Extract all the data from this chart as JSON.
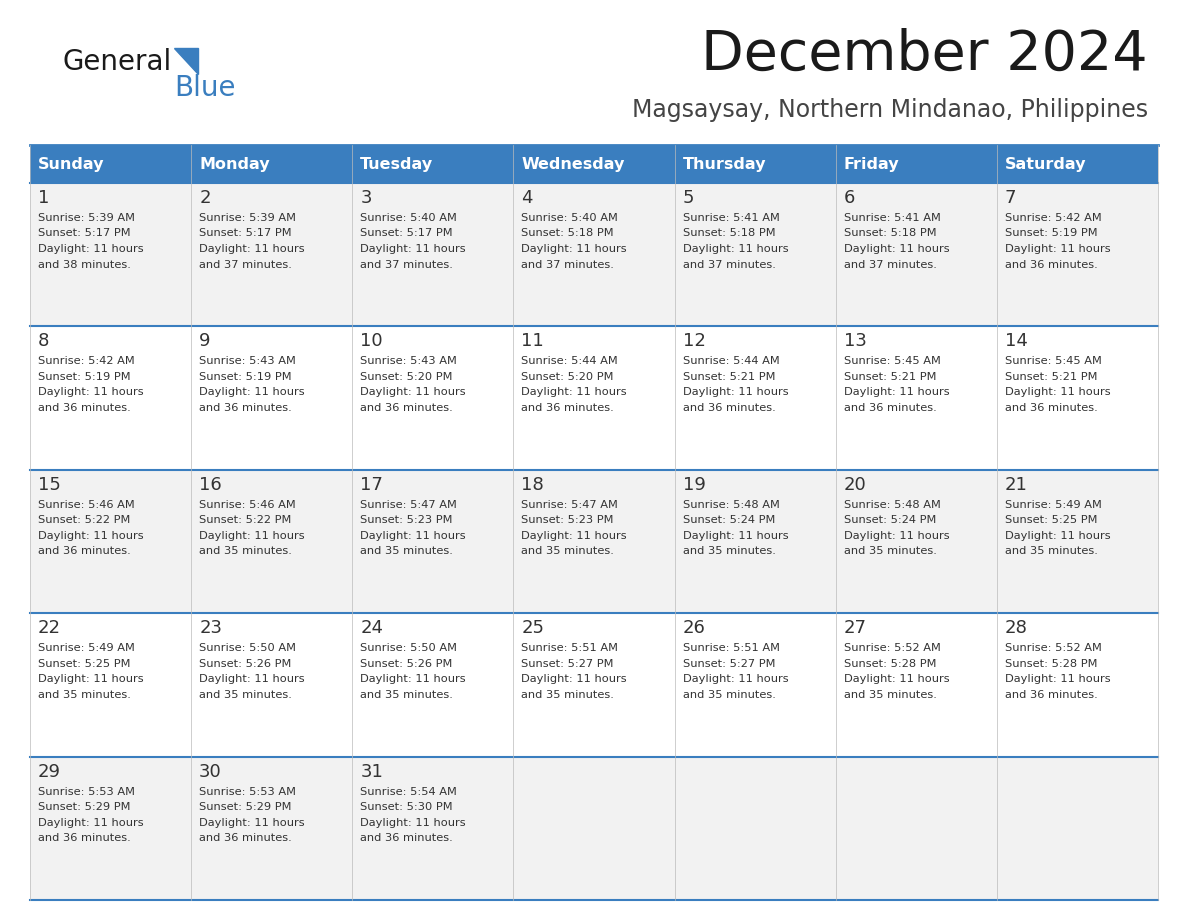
{
  "title": "December 2024",
  "subtitle": "Magsaysay, Northern Mindanao, Philippines",
  "header_bg_color": "#3a7ebf",
  "header_text_color": "#ffffff",
  "day_names": [
    "Sunday",
    "Monday",
    "Tuesday",
    "Wednesday",
    "Thursday",
    "Friday",
    "Saturday"
  ],
  "cell_bg_even": "#f2f2f2",
  "cell_bg_odd": "#ffffff",
  "border_color": "#3a7ebf",
  "text_color": "#333333",
  "days": [
    {
      "day": 1,
      "col": 0,
      "row": 0,
      "sunrise": "5:39 AM",
      "sunset": "5:17 PM",
      "daylight": "11 hours and 38 minutes"
    },
    {
      "day": 2,
      "col": 1,
      "row": 0,
      "sunrise": "5:39 AM",
      "sunset": "5:17 PM",
      "daylight": "11 hours and 37 minutes"
    },
    {
      "day": 3,
      "col": 2,
      "row": 0,
      "sunrise": "5:40 AM",
      "sunset": "5:17 PM",
      "daylight": "11 hours and 37 minutes"
    },
    {
      "day": 4,
      "col": 3,
      "row": 0,
      "sunrise": "5:40 AM",
      "sunset": "5:18 PM",
      "daylight": "11 hours and 37 minutes"
    },
    {
      "day": 5,
      "col": 4,
      "row": 0,
      "sunrise": "5:41 AM",
      "sunset": "5:18 PM",
      "daylight": "11 hours and 37 minutes"
    },
    {
      "day": 6,
      "col": 5,
      "row": 0,
      "sunrise": "5:41 AM",
      "sunset": "5:18 PM",
      "daylight": "11 hours and 37 minutes"
    },
    {
      "day": 7,
      "col": 6,
      "row": 0,
      "sunrise": "5:42 AM",
      "sunset": "5:19 PM",
      "daylight": "11 hours and 36 minutes"
    },
    {
      "day": 8,
      "col": 0,
      "row": 1,
      "sunrise": "5:42 AM",
      "sunset": "5:19 PM",
      "daylight": "11 hours and 36 minutes"
    },
    {
      "day": 9,
      "col": 1,
      "row": 1,
      "sunrise": "5:43 AM",
      "sunset": "5:19 PM",
      "daylight": "11 hours and 36 minutes"
    },
    {
      "day": 10,
      "col": 2,
      "row": 1,
      "sunrise": "5:43 AM",
      "sunset": "5:20 PM",
      "daylight": "11 hours and 36 minutes"
    },
    {
      "day": 11,
      "col": 3,
      "row": 1,
      "sunrise": "5:44 AM",
      "sunset": "5:20 PM",
      "daylight": "11 hours and 36 minutes"
    },
    {
      "day": 12,
      "col": 4,
      "row": 1,
      "sunrise": "5:44 AM",
      "sunset": "5:21 PM",
      "daylight": "11 hours and 36 minutes"
    },
    {
      "day": 13,
      "col": 5,
      "row": 1,
      "sunrise": "5:45 AM",
      "sunset": "5:21 PM",
      "daylight": "11 hours and 36 minutes"
    },
    {
      "day": 14,
      "col": 6,
      "row": 1,
      "sunrise": "5:45 AM",
      "sunset": "5:21 PM",
      "daylight": "11 hours and 36 minutes"
    },
    {
      "day": 15,
      "col": 0,
      "row": 2,
      "sunrise": "5:46 AM",
      "sunset": "5:22 PM",
      "daylight": "11 hours and 36 minutes"
    },
    {
      "day": 16,
      "col": 1,
      "row": 2,
      "sunrise": "5:46 AM",
      "sunset": "5:22 PM",
      "daylight": "11 hours and 35 minutes"
    },
    {
      "day": 17,
      "col": 2,
      "row": 2,
      "sunrise": "5:47 AM",
      "sunset": "5:23 PM",
      "daylight": "11 hours and 35 minutes"
    },
    {
      "day": 18,
      "col": 3,
      "row": 2,
      "sunrise": "5:47 AM",
      "sunset": "5:23 PM",
      "daylight": "11 hours and 35 minutes"
    },
    {
      "day": 19,
      "col": 4,
      "row": 2,
      "sunrise": "5:48 AM",
      "sunset": "5:24 PM",
      "daylight": "11 hours and 35 minutes"
    },
    {
      "day": 20,
      "col": 5,
      "row": 2,
      "sunrise": "5:48 AM",
      "sunset": "5:24 PM",
      "daylight": "11 hours and 35 minutes"
    },
    {
      "day": 21,
      "col": 6,
      "row": 2,
      "sunrise": "5:49 AM",
      "sunset": "5:25 PM",
      "daylight": "11 hours and 35 minutes"
    },
    {
      "day": 22,
      "col": 0,
      "row": 3,
      "sunrise": "5:49 AM",
      "sunset": "5:25 PM",
      "daylight": "11 hours and 35 minutes"
    },
    {
      "day": 23,
      "col": 1,
      "row": 3,
      "sunrise": "5:50 AM",
      "sunset": "5:26 PM",
      "daylight": "11 hours and 35 minutes"
    },
    {
      "day": 24,
      "col": 2,
      "row": 3,
      "sunrise": "5:50 AM",
      "sunset": "5:26 PM",
      "daylight": "11 hours and 35 minutes"
    },
    {
      "day": 25,
      "col": 3,
      "row": 3,
      "sunrise": "5:51 AM",
      "sunset": "5:27 PM",
      "daylight": "11 hours and 35 minutes"
    },
    {
      "day": 26,
      "col": 4,
      "row": 3,
      "sunrise": "5:51 AM",
      "sunset": "5:27 PM",
      "daylight": "11 hours and 35 minutes"
    },
    {
      "day": 27,
      "col": 5,
      "row": 3,
      "sunrise": "5:52 AM",
      "sunset": "5:28 PM",
      "daylight": "11 hours and 35 minutes"
    },
    {
      "day": 28,
      "col": 6,
      "row": 3,
      "sunrise": "5:52 AM",
      "sunset": "5:28 PM",
      "daylight": "11 hours and 36 minutes"
    },
    {
      "day": 29,
      "col": 0,
      "row": 4,
      "sunrise": "5:53 AM",
      "sunset": "5:29 PM",
      "daylight": "11 hours and 36 minutes"
    },
    {
      "day": 30,
      "col": 1,
      "row": 4,
      "sunrise": "5:53 AM",
      "sunset": "5:29 PM",
      "daylight": "11 hours and 36 minutes"
    },
    {
      "day": 31,
      "col": 2,
      "row": 4,
      "sunrise": "5:54 AM",
      "sunset": "5:30 PM",
      "daylight": "11 hours and 36 minutes"
    }
  ]
}
